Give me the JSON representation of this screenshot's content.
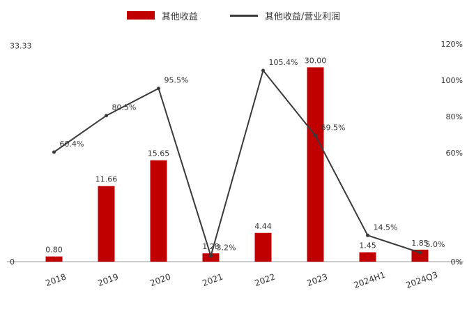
{
  "legend": {
    "bar_label": "其他收益",
    "line_label": "其他收益/营业利润"
  },
  "colors": {
    "bar": "#c00000",
    "line": "#3a3a3a",
    "axis": "#999999"
  },
  "chart_data": {
    "type": "bar",
    "categories": [
      "2018",
      "2019",
      "2020",
      "2021",
      "2022",
      "2023",
      "2024H1",
      "2024Q3"
    ],
    "series": [
      {
        "name": "其他收益",
        "type": "bar",
        "axis": "left",
        "values": [
          0.8,
          11.66,
          15.65,
          1.28,
          4.44,
          30.0,
          1.45,
          1.85
        ]
      },
      {
        "name": "其他收益/营业利润",
        "type": "line",
        "axis": "right",
        "values": [
          60.4,
          80.5,
          95.5,
          3.2,
          105.4,
          69.5,
          14.5,
          5.0
        ]
      }
    ],
    "left_axis": {
      "min": 0,
      "max": 35,
      "ticks": [
        "0",
        "33.33"
      ]
    },
    "right_axis": {
      "min": 0,
      "max": 125,
      "ticks": [
        "0%",
        "60%",
        "80%",
        "100%",
        "120%"
      ]
    },
    "data_labels": {
      "bars": [
        "0.80",
        "11.66",
        "15.65",
        "1.28",
        "4.44",
        "30.00",
        "1.45",
        "1.85"
      ],
      "line": [
        "60.4%",
        "80.5%",
        "95.5%",
        "3.2%",
        "105.4%",
        "69.5%",
        "14.5%",
        "5.0%"
      ]
    },
    "legend_position": "top-center",
    "grid": false
  }
}
